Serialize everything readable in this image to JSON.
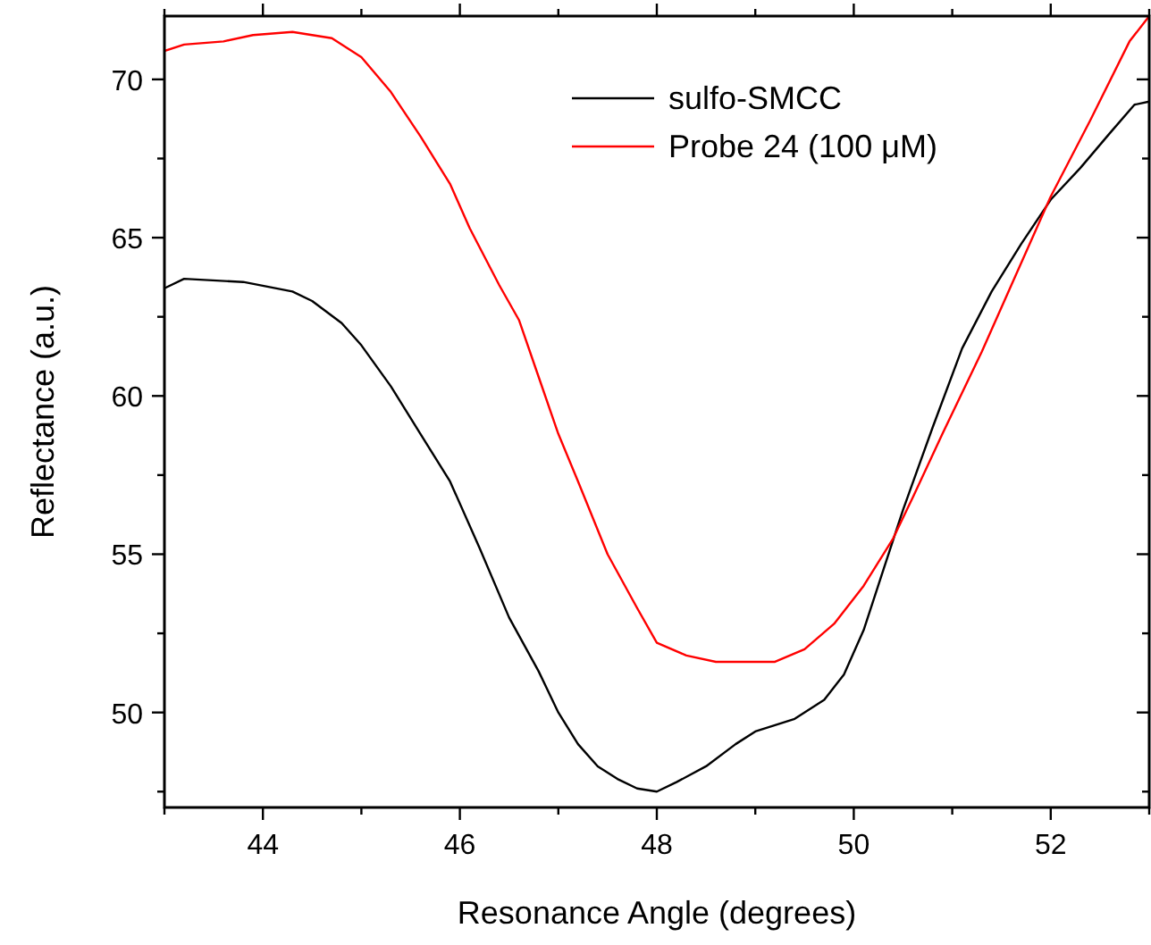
{
  "chart_data": {
    "type": "line",
    "xlabel": "Resonance Angle (degrees)",
    "ylabel": "Reflectance (a.u.)",
    "xlim": [
      43,
      53
    ],
    "ylim": [
      47,
      72
    ],
    "xticks": [
      {
        "value": 43,
        "label": null
      },
      44,
      {
        "value": 45,
        "label": null
      },
      46,
      {
        "value": 47,
        "label": null
      },
      48,
      {
        "value": 49,
        "label": null
      },
      50,
      {
        "value": 51,
        "label": null
      },
      52,
      {
        "value": 53,
        "label": null
      }
    ],
    "yticks": [
      {
        "value": 47.5,
        "label": null
      },
      50,
      {
        "value": 52.5,
        "label": null
      },
      55,
      {
        "value": 57.5,
        "label": null
      },
      60,
      {
        "value": 62.5,
        "label": null
      },
      65,
      {
        "value": 67.5,
        "label": null
      },
      70
    ],
    "grid": false,
    "legend": "top right",
    "marker": "none",
    "line_style": "solid",
    "series": [
      {
        "name": "sulfo-SMCC",
        "color": "#000000",
        "x": [
          43,
          43.2,
          43.8,
          44.3,
          44.5,
          44.8,
          45,
          45.3,
          45.6,
          45.9,
          46.2,
          46.5,
          46.8,
          47,
          47.2,
          47.4,
          47.6,
          47.8,
          48,
          48.2,
          48.5,
          48.8,
          49,
          49.4,
          49.7,
          49.9,
          50.1,
          50.3,
          50.5,
          50.8,
          51.1,
          51.4,
          51.7,
          52,
          52.3,
          52.6,
          52.85,
          53
        ],
        "values": [
          63.4,
          63.7,
          63.6,
          63.3,
          63,
          62.3,
          61.6,
          60.3,
          58.8,
          57.3,
          55.2,
          53,
          51.3,
          50,
          49,
          48.3,
          47.9,
          47.6,
          47.5,
          47.8,
          48.3,
          49,
          49.4,
          49.8,
          50.4,
          51.2,
          52.6,
          54.5,
          56.4,
          59,
          61.5,
          63.3,
          64.8,
          66.2,
          67.2,
          68.3,
          69.2,
          69.3
        ]
      },
      {
        "name": "Probe 24 (100 μM)",
        "color": "#ff0000",
        "x": [
          43,
          43.2,
          43.6,
          43.9,
          44.3,
          44.7,
          45,
          45.3,
          45.6,
          45.9,
          46.1,
          46.4,
          46.6,
          46.8,
          47,
          47.2,
          47.5,
          47.8,
          48,
          48.3,
          48.6,
          49.2,
          49.5,
          49.8,
          50.1,
          50.4,
          50.6,
          50.9,
          51.3,
          51.6,
          52,
          52.4,
          52.8,
          53
        ],
        "values": [
          70.9,
          71.1,
          71.2,
          71.4,
          71.5,
          71.3,
          70.7,
          69.6,
          68.2,
          66.7,
          65.3,
          63.5,
          62.4,
          60.6,
          58.8,
          57.3,
          55,
          53.3,
          52.2,
          51.8,
          51.6,
          51.6,
          52,
          52.8,
          54,
          55.5,
          56.8,
          58.8,
          61.4,
          63.5,
          66.3,
          68.7,
          71.2,
          72
        ]
      }
    ]
  }
}
